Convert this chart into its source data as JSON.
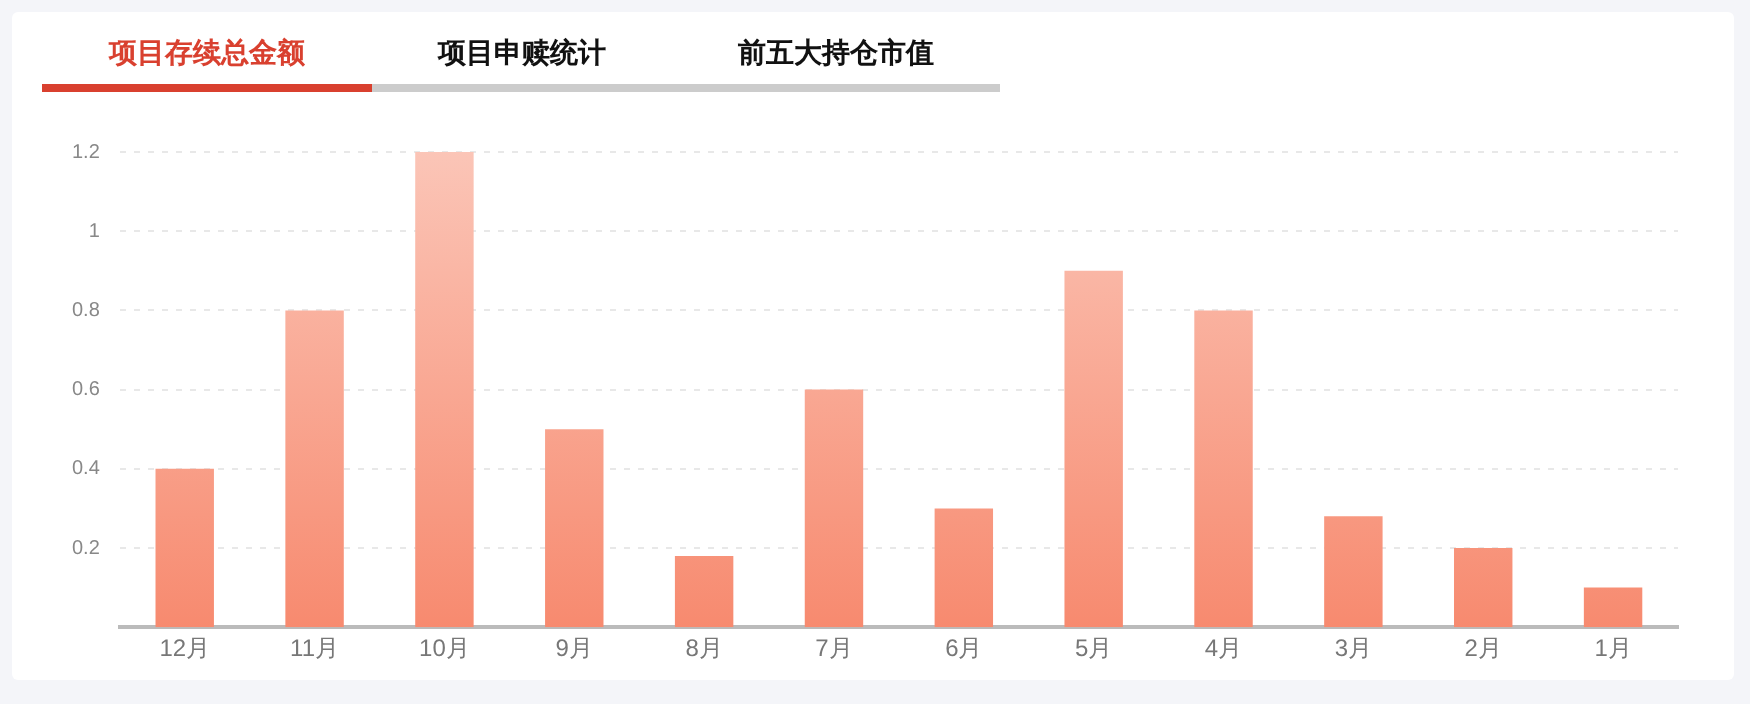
{
  "chart_data": {
    "type": "bar",
    "title": "项目存续总金额",
    "annotations": [
      "项目申赎统计",
      "前五大持仓市值"
    ],
    "categories": [
      "12月",
      "11月",
      "10月",
      "9月",
      "8月",
      "7月",
      "6月",
      "5月",
      "4月",
      "3月",
      "2月",
      "1月"
    ],
    "values": [
      0.4,
      0.8,
      1.2,
      0.5,
      0.18,
      0.6,
      0.3,
      0.9,
      0.8,
      0.28,
      0.2,
      0.1
    ],
    "color": "#f78a6f",
    "ylim": [
      0,
      1.2
    ],
    "yticks": [
      0.2,
      0.4,
      0.6,
      0.8,
      1,
      1.2
    ],
    "grid": "y"
  }
}
